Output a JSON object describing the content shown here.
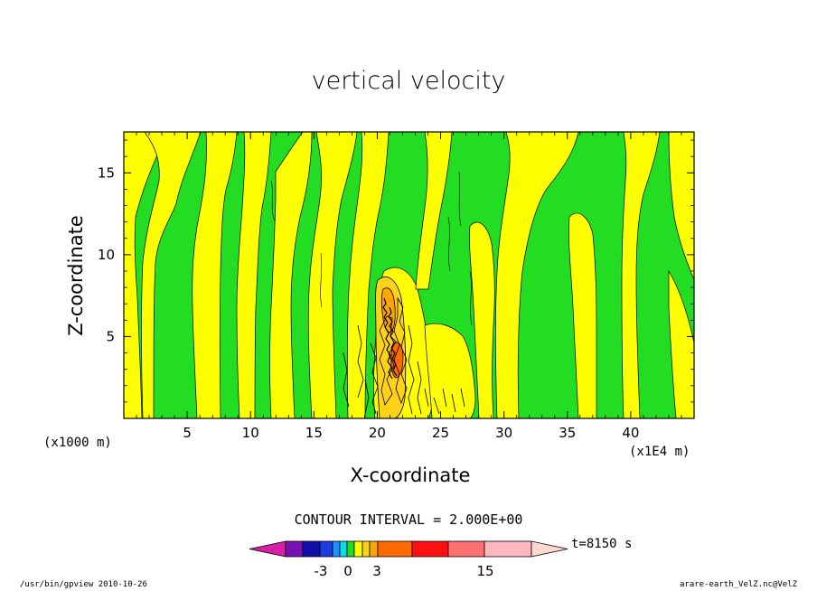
{
  "chart_data": {
    "type": "heatmap",
    "title": "vertical velocity",
    "xlabel": "X-coordinate",
    "ylabel": "Z-coordinate",
    "x_factor_label": "(x1000 m)",
    "x_unit_label": "(x1E4 m)",
    "xlim": [
      0,
      45
    ],
    "ylim": [
      0,
      17.5
    ],
    "xticks": [
      5,
      10,
      15,
      20,
      25,
      30,
      35,
      40
    ],
    "yticks": [
      5,
      10,
      15
    ],
    "contour_interval_label": "CONTOUR INTERVAL = 2.000E+00",
    "time_label": "t=8150 s",
    "colorbar": {
      "levels": [
        -13,
        -11,
        -9,
        -7,
        -5,
        -3,
        -1,
        0,
        1,
        3,
        5,
        9,
        13,
        17,
        21
      ],
      "tick_labels": [
        {
          "label": "-3",
          "value": -3
        },
        {
          "label": "0",
          "value": 0
        },
        {
          "label": "3",
          "value": 3
        },
        {
          "label": "15",
          "value": 15
        }
      ],
      "colors": [
        "#d81fa8",
        "#7a10b4",
        "#1010a8",
        "#1a3ce0",
        "#2090ff",
        "#10d8e8",
        "#22dd22",
        "#ffff00",
        "#ffd21a",
        "#ffa500",
        "#ff6a00",
        "#ff1010",
        "#ff7070",
        "#ffb8c0",
        "#ffd8d0"
      ]
    },
    "grid": false,
    "legend": "colorbar-bottom"
  },
  "footer": {
    "left": "/usr/bin/gpview   2010-10-26",
    "right": "arare-earth_VelZ.nc@VelZ"
  }
}
